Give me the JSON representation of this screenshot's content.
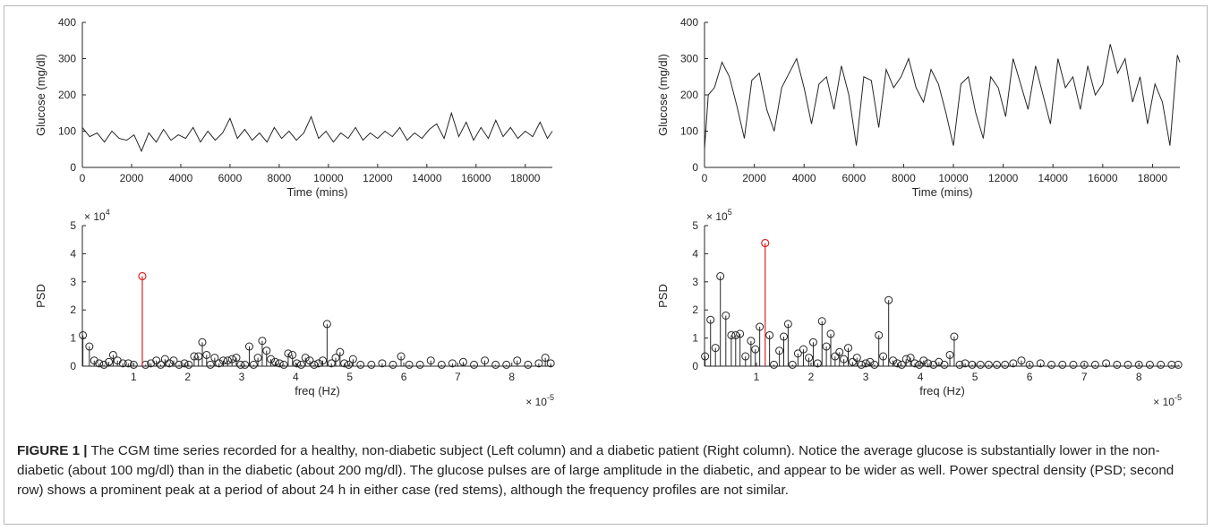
{
  "figure": {
    "caption_label": "FIGURE 1 |",
    "caption_text": " The CGM time series recorded for a healthy, non-diabetic subject (Left column) and a diabetic patient (Right column). Notice the average glucose is substantially lower in the non-diabetic (about 100 mg/dl) than in the diabetic (about 200 mg/dl). The glucose pulses are of large amplitude in the diabetic, and appear to be wider as well. Power spectral density (PSD; second row) shows a prominent peak at a period of about 24 h in either case (red stems), although the frequency profiles are not similar."
  },
  "colors": {
    "line": "#262626",
    "highlight": "#d62728",
    "axis": "#262626"
  },
  "chart_data": [
    {
      "id": "left-glucose",
      "type": "line",
      "xlabel": "Time (mins)",
      "ylabel": "Glucose (mg/dl)",
      "xlim": [
        0,
        19100
      ],
      "ylim": [
        0,
        400
      ],
      "xticks": [
        0,
        2000,
        4000,
        6000,
        8000,
        10000,
        12000,
        14000,
        16000,
        18000
      ],
      "yticks": [
        0,
        100,
        200,
        300,
        400
      ],
      "series": [
        {
          "x": [
            0,
            300,
            600,
            900,
            1200,
            1500,
            1800,
            2100,
            2400,
            2700,
            3000,
            3300,
            3600,
            3900,
            4200,
            4500,
            4800,
            5100,
            5400,
            5700,
            6000,
            6300,
            6600,
            6900,
            7200,
            7500,
            7800,
            8100,
            8400,
            8700,
            9000,
            9300,
            9600,
            9900,
            10200,
            10500,
            10800,
            11100,
            11400,
            11700,
            12000,
            12300,
            12600,
            12900,
            13200,
            13500,
            13800,
            14100,
            14400,
            14700,
            15000,
            15300,
            15600,
            15900,
            16200,
            16500,
            16800,
            17100,
            17400,
            17700,
            18000,
            18300,
            18600,
            18900,
            19100
          ],
          "y": [
            110,
            85,
            95,
            70,
            100,
            80,
            75,
            90,
            45,
            95,
            70,
            105,
            75,
            90,
            80,
            110,
            70,
            100,
            75,
            95,
            135,
            80,
            105,
            75,
            95,
            70,
            110,
            80,
            100,
            75,
            95,
            140,
            80,
            100,
            70,
            95,
            80,
            110,
            75,
            95,
            80,
            100,
            85,
            110,
            75,
            95,
            80,
            105,
            120,
            80,
            150,
            85,
            125,
            75,
            110,
            80,
            130,
            85,
            110,
            80,
            100,
            85,
            125,
            80,
            100
          ]
        }
      ]
    },
    {
      "id": "right-glucose",
      "type": "line",
      "xlabel": "Time (mins)",
      "ylabel": "Glucose (mg/dl)",
      "xlim": [
        0,
        19100
      ],
      "ylim": [
        0,
        400
      ],
      "xticks": [
        0,
        2000,
        4000,
        6000,
        8000,
        10000,
        12000,
        14000,
        16000,
        18000
      ],
      "yticks": [
        0,
        100,
        200,
        300,
        400
      ],
      "series": [
        {
          "x": [
            0,
            150,
            400,
            700,
            1000,
            1300,
            1600,
            1900,
            2200,
            2500,
            2800,
            3100,
            3400,
            3700,
            4000,
            4300,
            4600,
            4900,
            5200,
            5500,
            5800,
            6100,
            6400,
            6700,
            7000,
            7300,
            7600,
            7900,
            8200,
            8500,
            8800,
            9100,
            9400,
            9700,
            10000,
            10300,
            10600,
            10900,
            11200,
            11500,
            11800,
            12100,
            12400,
            12700,
            13000,
            13300,
            13600,
            13900,
            14200,
            14500,
            14800,
            15100,
            15400,
            15700,
            16000,
            16300,
            16600,
            16900,
            17200,
            17500,
            17800,
            18100,
            18400,
            18700,
            19000,
            19100
          ],
          "y": [
            50,
            200,
            220,
            290,
            250,
            170,
            80,
            240,
            260,
            160,
            100,
            220,
            260,
            300,
            220,
            120,
            230,
            250,
            160,
            280,
            200,
            60,
            250,
            240,
            110,
            270,
            220,
            250,
            300,
            220,
            180,
            270,
            230,
            150,
            60,
            230,
            250,
            150,
            80,
            250,
            220,
            140,
            300,
            230,
            160,
            280,
            200,
            120,
            300,
            220,
            250,
            160,
            280,
            200,
            230,
            340,
            260,
            300,
            180,
            250,
            120,
            230,
            180,
            60,
            310,
            290
          ]
        }
      ]
    },
    {
      "id": "left-psd",
      "type": "scatter",
      "xlabel": "freq (Hz)",
      "ylabel": "PSD",
      "x_exponent": "× 10^-5",
      "y_exponent": "× 10^4",
      "xlim": [
        0.05,
        8.75
      ],
      "ylim": [
        0,
        5
      ],
      "xticks": [
        1,
        2,
        3,
        4,
        5,
        6,
        7,
        8
      ],
      "yticks": [
        0,
        1,
        2,
        3,
        4,
        5
      ],
      "highlight": {
        "x": 1.16,
        "y": 3.2
      },
      "series": [
        {
          "x": [
            0.06,
            0.18,
            0.27,
            0.36,
            0.45,
            0.54,
            0.62,
            0.7,
            0.8,
            0.9,
            1.0,
            1.22,
            1.32,
            1.42,
            1.5,
            1.58,
            1.66,
            1.74,
            1.84,
            1.94,
            2.02,
            2.12,
            2.2,
            2.27,
            2.35,
            2.42,
            2.5,
            2.58,
            2.66,
            2.74,
            2.82,
            2.9,
            2.98,
            3.06,
            3.14,
            3.22,
            3.3,
            3.38,
            3.46,
            3.54,
            3.62,
            3.7,
            3.78,
            3.86,
            3.94,
            4.02,
            4.1,
            4.18,
            4.26,
            4.34,
            4.42,
            4.5,
            4.58,
            4.66,
            4.74,
            4.82,
            4.9,
            4.98,
            5.06,
            5.2,
            5.4,
            5.6,
            5.8,
            5.95,
            6.1,
            6.3,
            6.5,
            6.7,
            6.9,
            7.1,
            7.3,
            7.5,
            7.7,
            7.9,
            8.1,
            8.3,
            8.5,
            8.62,
            8.72
          ],
          "y": [
            1.1,
            0.7,
            0.2,
            0.1,
            0.05,
            0.15,
            0.4,
            0.2,
            0.1,
            0.1,
            0.05,
            0.05,
            0.1,
            0.2,
            0.05,
            0.25,
            0.1,
            0.2,
            0.05,
            0.1,
            0.05,
            0.35,
            0.35,
            0.85,
            0.4,
            0.05,
            0.3,
            0.1,
            0.2,
            0.2,
            0.25,
            0.3,
            0.05,
            0.05,
            0.7,
            0.05,
            0.3,
            0.9,
            0.55,
            0.25,
            0.15,
            0.1,
            0.05,
            0.45,
            0.4,
            0.1,
            0.05,
            0.3,
            0.2,
            0.05,
            0.1,
            0.2,
            1.5,
            0.1,
            0.3,
            0.5,
            0.1,
            0.05,
            0.25,
            0.05,
            0.05,
            0.1,
            0.05,
            0.35,
            0.05,
            0.05,
            0.2,
            0.05,
            0.1,
            0.15,
            0.05,
            0.2,
            0.05,
            0.05,
            0.2,
            0.05,
            0.1,
            0.3,
            0.1
          ]
        }
      ]
    },
    {
      "id": "right-psd",
      "type": "scatter",
      "xlabel": "freq (Hz)",
      "ylabel": "PSD",
      "x_exponent": "× 10^-5",
      "y_exponent": "× 10^5",
      "xlim": [
        0.05,
        8.75
      ],
      "ylim": [
        0,
        5
      ],
      "xticks": [
        1,
        2,
        3,
        4,
        5,
        6,
        7,
        8
      ],
      "yticks": [
        0,
        1,
        2,
        3,
        4,
        5
      ],
      "highlight": {
        "x": 1.16,
        "y": 4.38
      },
      "series": [
        {
          "x": [
            0.06,
            0.16,
            0.25,
            0.34,
            0.44,
            0.54,
            0.62,
            0.7,
            0.8,
            0.9,
            0.98,
            1.06,
            1.24,
            1.32,
            1.42,
            1.5,
            1.58,
            1.66,
            1.76,
            1.86,
            1.96,
            2.04,
            2.12,
            2.2,
            2.28,
            2.36,
            2.44,
            2.52,
            2.6,
            2.68,
            2.76,
            2.84,
            2.92,
            3.0,
            3.08,
            3.16,
            3.24,
            3.32,
            3.42,
            3.5,
            3.58,
            3.66,
            3.74,
            3.82,
            3.9,
            3.98,
            4.06,
            4.14,
            4.24,
            4.34,
            4.44,
            4.54,
            4.62,
            4.72,
            4.82,
            4.95,
            5.1,
            5.25,
            5.4,
            5.55,
            5.7,
            5.85,
            6.0,
            6.2,
            6.4,
            6.6,
            6.8,
            7.0,
            7.2,
            7.4,
            7.6,
            7.8,
            8.0,
            8.2,
            8.4,
            8.6,
            8.72
          ],
          "y": [
            0.35,
            1.65,
            0.65,
            3.2,
            1.8,
            1.1,
            1.1,
            1.15,
            0.35,
            0.9,
            0.6,
            1.4,
            1.1,
            0.05,
            0.55,
            1.05,
            1.5,
            0.05,
            0.45,
            0.6,
            0.3,
            0.85,
            0.1,
            1.6,
            0.7,
            1.15,
            0.35,
            0.5,
            0.25,
            0.65,
            0.15,
            0.3,
            0.05,
            0.1,
            0.15,
            0.05,
            1.1,
            0.35,
            2.35,
            0.2,
            0.1,
            0.05,
            0.25,
            0.3,
            0.1,
            0.05,
            0.2,
            0.1,
            0.05,
            0.15,
            0.05,
            0.4,
            1.05,
            0.05,
            0.1,
            0.05,
            0.05,
            0.05,
            0.05,
            0.05,
            0.1,
            0.2,
            0.05,
            0.1,
            0.05,
            0.05,
            0.05,
            0.05,
            0.05,
            0.1,
            0.05,
            0.05,
            0.05,
            0.05,
            0.05,
            0.05,
            0.05
          ]
        }
      ]
    }
  ]
}
